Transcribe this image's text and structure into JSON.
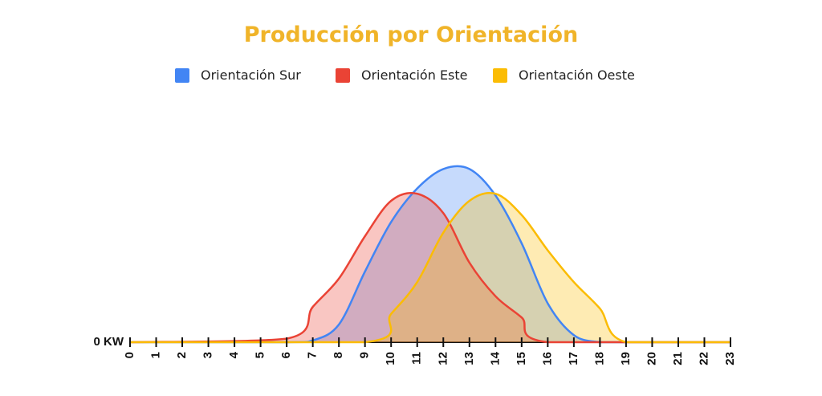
{
  "chart_data": {
    "type": "area",
    "title": "Producción por Orientación",
    "y_tick_label": "0 KW",
    "xlabel": "",
    "ylabel": "",
    "x": [
      0,
      1,
      2,
      3,
      4,
      5,
      6,
      7,
      8,
      9,
      10,
      11,
      12,
      13,
      14,
      15,
      16,
      17,
      18,
      19,
      20,
      21,
      22,
      23
    ],
    "x_tick_labels": [
      "0",
      "1",
      "2",
      "3",
      "4",
      "5",
      "6",
      "7",
      "8",
      "9",
      "10",
      "11",
      "12",
      "13",
      "14",
      "15",
      "16",
      "17",
      "18",
      "19",
      "20",
      "21",
      "22",
      "23"
    ],
    "ylim": [
      0,
      1.1
    ],
    "legend_position": "top",
    "grid": false,
    "series": [
      {
        "name": "Orientación Sur",
        "color": "#4285f4",
        "points": [
          [
            0,
            0
          ],
          [
            6,
            0
          ],
          [
            7,
            0.01
          ],
          [
            8,
            0.1
          ],
          [
            9,
            0.4
          ],
          [
            10,
            0.68
          ],
          [
            11,
            0.87
          ],
          [
            12,
            0.98
          ],
          [
            13,
            0.98
          ],
          [
            14,
            0.83
          ],
          [
            15,
            0.56
          ],
          [
            16,
            0.22
          ],
          [
            17,
            0.04
          ],
          [
            18,
            0
          ],
          [
            19,
            0
          ],
          [
            23,
            0
          ]
        ]
      },
      {
        "name": "Orientación Este",
        "color": "#ea4335",
        "points": [
          [
            0,
            0
          ],
          [
            6,
            0.02
          ],
          [
            7,
            0.2
          ],
          [
            8,
            0.36
          ],
          [
            9,
            0.6
          ],
          [
            10,
            0.8
          ],
          [
            11,
            0.84
          ],
          [
            12,
            0.73
          ],
          [
            13,
            0.45
          ],
          [
            14,
            0.26
          ],
          [
            15,
            0.14
          ],
          [
            16,
            0
          ],
          [
            23,
            0
          ]
        ]
      },
      {
        "name": "Orientación Oeste",
        "color": "#fbbc04",
        "points": [
          [
            0,
            0
          ],
          [
            9,
            0
          ],
          [
            10,
            0.16
          ],
          [
            11,
            0.34
          ],
          [
            12,
            0.62
          ],
          [
            13,
            0.8
          ],
          [
            14,
            0.84
          ],
          [
            15,
            0.72
          ],
          [
            16,
            0.52
          ],
          [
            17,
            0.34
          ],
          [
            18,
            0.19
          ],
          [
            19,
            0
          ],
          [
            23,
            0
          ]
        ]
      }
    ]
  }
}
